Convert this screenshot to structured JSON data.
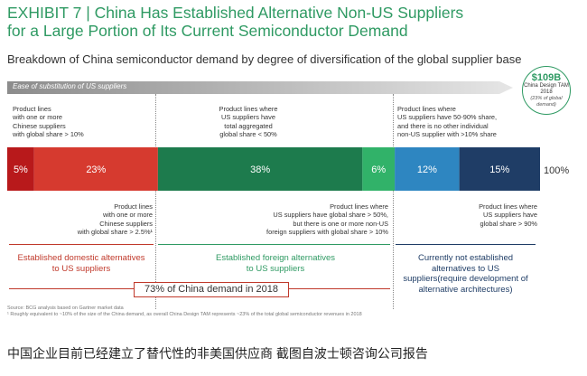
{
  "exhibit": {
    "title_line1": "EXHIBIT 7 | China Has Established Alternative Non-US Suppliers",
    "title_line2": "for a Large Portion of Its Current Semiconductor Demand",
    "subtitle": "Breakdown of China semiconductor demand by degree of diversification of the global supplier base",
    "ease_label": "Ease of substitution of US suppliers"
  },
  "tam": {
    "value": "$109B",
    "label": "China Design TAM 2018",
    "sub": "(23% of global demand)"
  },
  "chart_data": {
    "type": "bar",
    "orientation": "horizontal-stacked",
    "unit": "%",
    "total_label": "100%",
    "segments": [
      {
        "label": "5%",
        "value": 5,
        "color": "#b8191b"
      },
      {
        "label": "23%",
        "value": 23,
        "color": "#d63a2f"
      },
      {
        "label": "38%",
        "value": 38,
        "color": "#1d7b4d"
      },
      {
        "label": "6%",
        "value": 6,
        "color": "#31b269"
      },
      {
        "label": "12%",
        "value": 12,
        "color": "#2e86c1"
      },
      {
        "label": "15%",
        "value": 15,
        "color": "#1f3d66"
      }
    ],
    "colors": {
      "domestic": "#c0392b",
      "foreign": "#2f9a63",
      "not_established": "#1f3d66"
    }
  },
  "notes": {
    "top_left": [
      "Product lines",
      "with one or more",
      "Chinese suppliers",
      "with global share > 10%"
    ],
    "top_mid": [
      "Product lines where",
      "US suppliers have",
      "total aggregated",
      "global share < 50%"
    ],
    "top_right": [
      "Product lines where",
      "US suppliers have 50-90% share,",
      "and there is no other individual",
      "non-US supplier with >10% share"
    ],
    "bottom_left": [
      "Product lines",
      "with one or more",
      "Chinese suppliers",
      "with global share > 2.5%¹"
    ],
    "bottom_mid": [
      "Product lines where",
      "US suppliers have global share > 50%,",
      "but there is one or more non-US",
      "foreign suppliers with global share > 10%"
    ],
    "bottom_right": [
      "Product lines where",
      "US suppliers have",
      "global share > 90%"
    ]
  },
  "categories": {
    "domestic": [
      "Established domestic alternatives",
      "to US suppliers"
    ],
    "foreign": [
      "Established foreign alternatives",
      "to US suppliers"
    ],
    "not_established": [
      "Currently not established",
      "alternatives to US",
      "suppliers(require development of",
      "alternative architectures)"
    ]
  },
  "share_box": "73% of China demand in 2018",
  "source": {
    "line1": "Source: BCG analysis based on Gartner market data",
    "line2": "¹ Roughly equivalent to ~10% of the size of the China demand, as overall China Design TAM represents ~23% of the total global semiconductor revenues in 2018"
  },
  "caption": "中国企业目前已经建立了替代性的非美国供应商 截图自波士顿咨询公司报告"
}
